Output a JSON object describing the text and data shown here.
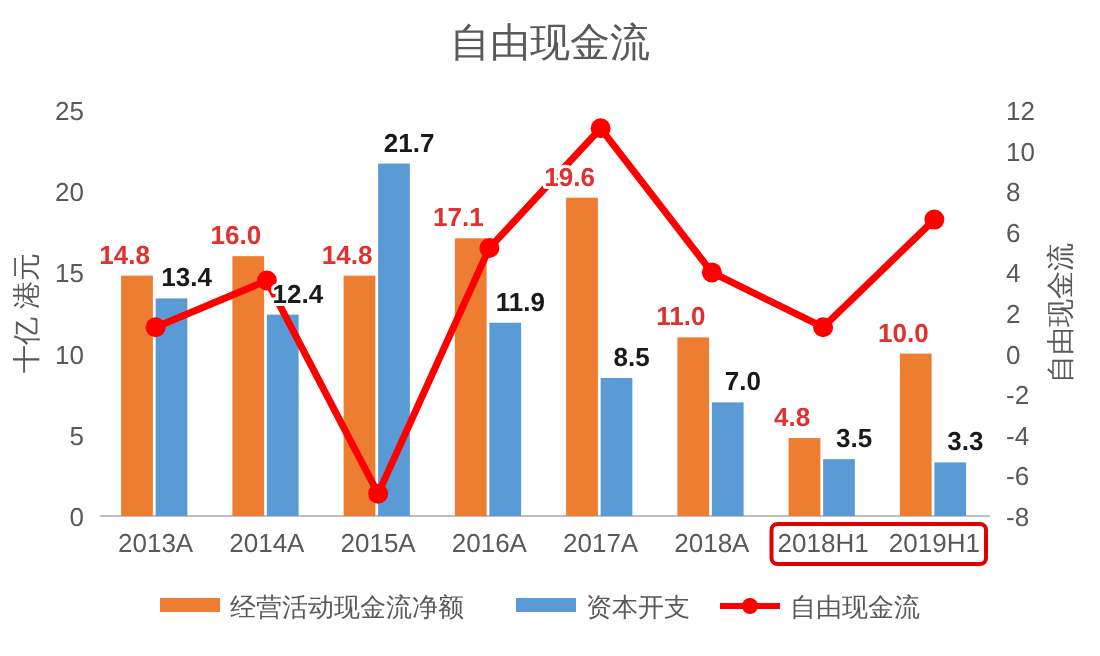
{
  "chart_data": {
    "type": "bar",
    "title": "自由现金流",
    "ylabel": "十亿 港元",
    "y2label": "自由现金流",
    "categories": [
      "2013A",
      "2014A",
      "2015A",
      "2016A",
      "2017A",
      "2018A",
      "2018H1",
      "2019H1"
    ],
    "series": [
      {
        "name": "经营活动现金流净额",
        "color": "#ed7d31",
        "values": [
          14.8,
          16.0,
          14.8,
          17.1,
          19.6,
          11.0,
          4.8,
          10.0
        ],
        "value_labels": [
          "14.8",
          "16.0",
          "14.8",
          "17.1",
          "19.6",
          "11.0",
          "4.8",
          "10.0"
        ]
      },
      {
        "name": "资本开支",
        "color": "#5b9bd5",
        "values": [
          13.4,
          12.4,
          21.7,
          11.9,
          8.5,
          7.0,
          3.5,
          3.3
        ],
        "value_labels": [
          "13.4",
          "12.4",
          "21.7",
          "11.9",
          "8.5",
          "7.0",
          "3.5",
          "3.3"
        ]
      },
      {
        "name": "自由现金流",
        "color": "#ff0000",
        "type": "line",
        "axis": "y2",
        "marker": "circle",
        "values": [
          1.3,
          3.6,
          -6.9,
          5.2,
          11.1,
          4.0,
          1.3,
          6.6
        ]
      }
    ],
    "ylim": [
      0,
      25
    ],
    "yticks": [
      0,
      5,
      10,
      15,
      20,
      25
    ],
    "y2lim": [
      -8,
      12
    ],
    "y2ticks": [
      -8,
      -6,
      -4,
      -2,
      0,
      2,
      4,
      6,
      8,
      10,
      12
    ],
    "grid": false,
    "legend": "bottom"
  }
}
